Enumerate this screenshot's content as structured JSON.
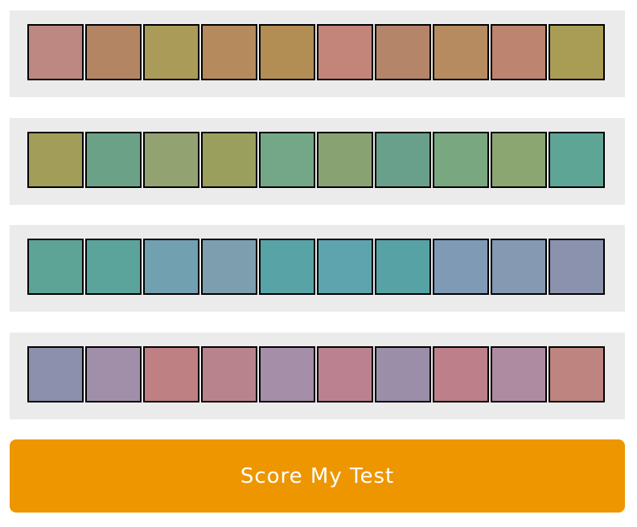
{
  "rows": [
    {
      "swatches": [
        "#bd8882",
        "#b48563",
        "#ab9b58",
        "#b58b5d",
        "#b28e55",
        "#c38479",
        "#b58569",
        "#b58b5f",
        "#bd846f",
        "#a99d55"
      ]
    },
    {
      "swatches": [
        "#a29d59",
        "#6ba287",
        "#93a271",
        "#9b9f5d",
        "#73a787",
        "#89a272",
        "#69a08c",
        "#79a77f",
        "#8ca672",
        "#5ea596"
      ]
    },
    {
      "swatches": [
        "#5ea496",
        "#5aa49c",
        "#71a0b0",
        "#7d9eaf",
        "#58a3a6",
        "#5ea4ae",
        "#57a2a5",
        "#7f9ab5",
        "#8599b3",
        "#8a92ae"
      ]
    },
    {
      "swatches": [
        "#8d90ac",
        "#a18fa9",
        "#bf8083",
        "#b9838d",
        "#a58ea7",
        "#bc8191",
        "#9a8ea8",
        "#bd7f89",
        "#af8ba2",
        "#bd8480"
      ]
    }
  ],
  "score_button": {
    "label": "Score My Test",
    "color": "#ee9600"
  }
}
